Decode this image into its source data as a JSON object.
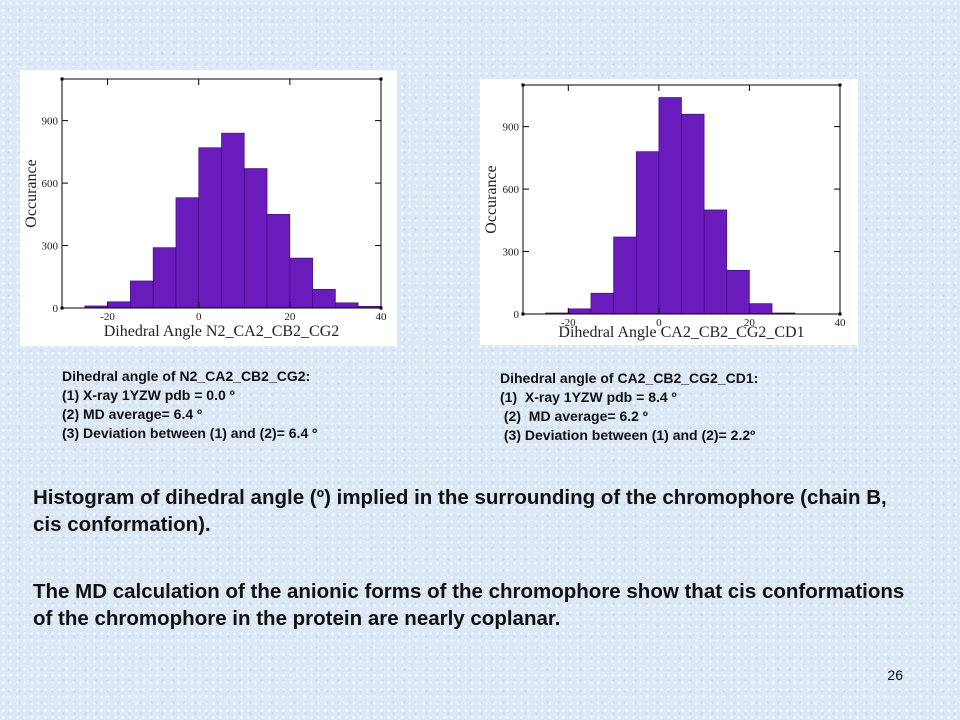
{
  "chart_data": [
    {
      "type": "bar",
      "ylabel": "Occurance",
      "xlabel": "Dihedral Angle N2_CA2_CB2_CG2",
      "xlim": [
        -30,
        40
      ],
      "ylim": [
        0,
        1100
      ],
      "xticks": [
        -20,
        0,
        20,
        40
      ],
      "yticks": [
        0,
        300,
        600,
        900
      ],
      "bin_width": 5,
      "bins": [
        -25,
        -20,
        -15,
        -10,
        -5,
        0,
        5,
        10,
        15,
        20,
        25,
        30,
        35
      ],
      "values": [
        10,
        30,
        130,
        290,
        530,
        770,
        840,
        670,
        450,
        240,
        90,
        25,
        8
      ],
      "bar_color": "#6a1bbb"
    },
    {
      "type": "bar",
      "ylabel": "Occurance",
      "xlabel": "Dihedral Angle CA2_CB2_CG2_CD1",
      "xlim": [
        -30,
        40
      ],
      "ylim": [
        0,
        1100
      ],
      "xticks": [
        -20,
        0,
        20,
        40
      ],
      "yticks": [
        0,
        300,
        600,
        900
      ],
      "bin_width": 5,
      "bins": [
        -25,
        -20,
        -15,
        -10,
        -5,
        0,
        5,
        10,
        15,
        20,
        25,
        30,
        35
      ],
      "values": [
        5,
        25,
        100,
        370,
        780,
        1040,
        960,
        500,
        210,
        50,
        5,
        0,
        0
      ],
      "bar_color": "#6a1bbb"
    }
  ],
  "captions": {
    "left": {
      "title": "Dihedral angle of N2_CA2_CB2_CG2:",
      "line1": "(1)  X-ray 1YZW pdb = 0.0 º",
      "line2": "(2)  MD average= 6.4 º",
      "line3": "(3) Deviation between (1) and (2)= 6.4 º"
    },
    "right": {
      "title": "Dihedral angle of CA2_CB2_CG2_CD1:",
      "line1": "(1)  X-ray 1YZW pdb = 8.4 º",
      "line2": " (2)  MD average= 6.2 º",
      "line3": " (3) Deviation between (1) and (2)= 2.2º"
    }
  },
  "paragraphs": {
    "p1": "Histogram of dihedral angle (º) implied in the surrounding of the chromophore (chain B, cis conformation).",
    "p2": "The MD calculation of the anionic forms of the chromophore show that cis conformations of the chromophore in the protein are nearly coplanar."
  },
  "slide_number": "26"
}
